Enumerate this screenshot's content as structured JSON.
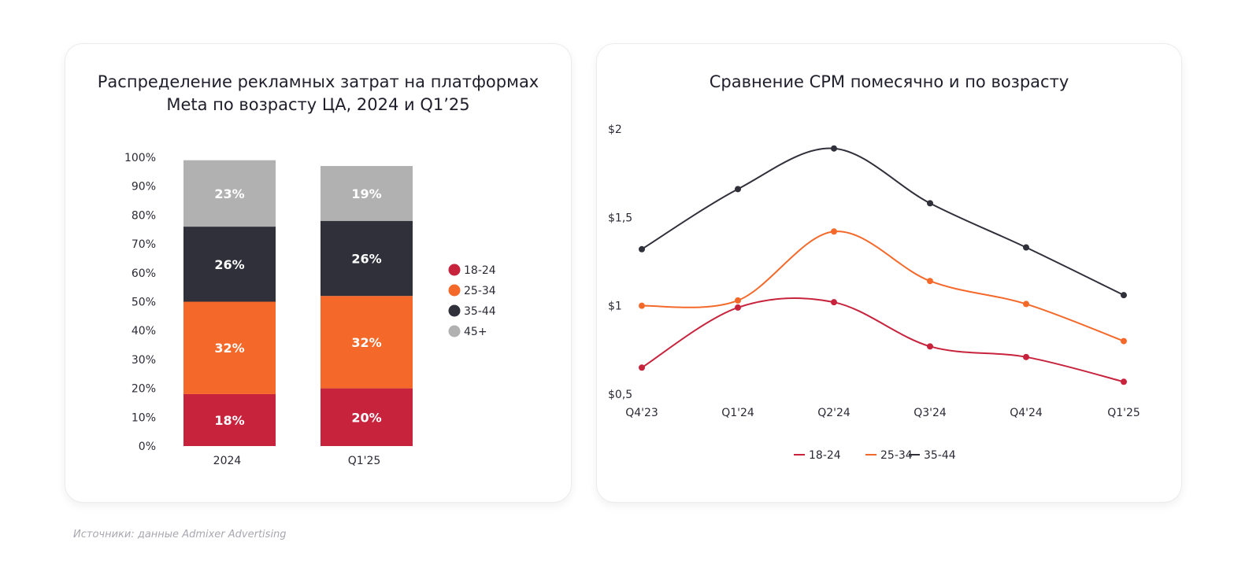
{
  "source_note": "Источники: данные Admixer Advertising",
  "colors": {
    "18-24": "#c8233d",
    "25-34": "#f4692a",
    "35-44": "#30303b",
    "45+": "#b1b1b1"
  },
  "chart_data": [
    {
      "type": "bar",
      "stacked": true,
      "title_line1": "Распределение рекламных затрат на платформах",
      "title_line2": "Meta по возрасту ЦА, 2024 и Q1’25",
      "categories": [
        "2024",
        "Q1'25"
      ],
      "y_ticks": [
        "0%",
        "10%",
        "20%",
        "30%",
        "40%",
        "50%",
        "60%",
        "70%",
        "80%",
        "90%",
        "100%"
      ],
      "ylim": [
        0,
        100
      ],
      "legend_position": "right",
      "series": [
        {
          "name": "18-24",
          "values": [
            18,
            20
          ],
          "labels": [
            "18%",
            "20%"
          ]
        },
        {
          "name": "25-34",
          "values": [
            32,
            32
          ],
          "labels": [
            "32%",
            "32%"
          ]
        },
        {
          "name": "35-44",
          "values": [
            26,
            26
          ],
          "labels": [
            "26%",
            "26%"
          ]
        },
        {
          "name": "45+",
          "values": [
            23,
            19
          ],
          "labels": [
            "23%",
            "19%"
          ]
        }
      ]
    },
    {
      "type": "line",
      "title": "Сравнение CPM помесячно и по возрасту",
      "categories": [
        "Q4'23",
        "Q1'24",
        "Q2'24",
        "Q3'24",
        "Q4'24",
        "Q1'25"
      ],
      "y_ticks": [
        {
          "value": 0.5,
          "label": "$0,5"
        },
        {
          "value": 1.0,
          "label": "$1"
        },
        {
          "value": 1.5,
          "label": "$1,5"
        },
        {
          "value": 2.0,
          "label": "$2"
        }
      ],
      "ylim": [
        0.5,
        2.0
      ],
      "legend_position": "bottom",
      "series": [
        {
          "name": "18-24",
          "values": [
            0.65,
            0.99,
            1.02,
            0.77,
            0.71,
            0.57
          ]
        },
        {
          "name": "25-34",
          "values": [
            1.0,
            1.03,
            1.42,
            1.14,
            1.01,
            0.8
          ]
        },
        {
          "name": "35-44",
          "values": [
            1.32,
            1.66,
            1.89,
            1.58,
            1.33,
            1.06
          ]
        }
      ]
    }
  ]
}
